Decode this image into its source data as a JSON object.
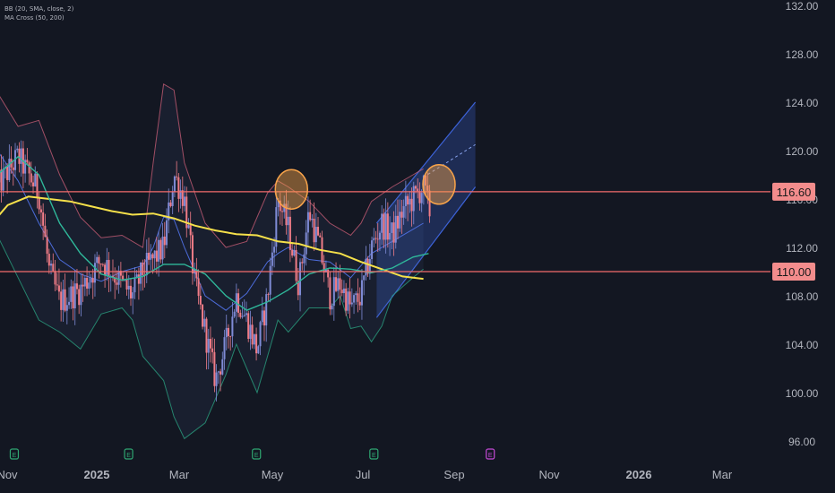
{
  "indicators": {
    "bb_label": "BB (20, SMA, close, 2)",
    "ma_label": "MA Cross (50, 200)"
  },
  "colors": {
    "background": "#131722",
    "axis_text": "#b2b5be",
    "candle_up": "#7f8bd6",
    "candle_down": "#f07c87",
    "bb_band": "#d0607a",
    "bb_basis": "#4c6bd8",
    "ma50": "#2fb89a",
    "ma200": "#f5e04a",
    "level_line": "#f36c6c",
    "price_label_bg": "#f38c8c",
    "price_label_text": "#1b1b1b",
    "channel": "#3d63d9",
    "highlight_circle": "#f7a34a",
    "event_green": "#2fa772",
    "event_purple": "#c44ad6"
  },
  "chart_data": {
    "type": "candlestick",
    "x_ticks": [
      "Nov",
      "2025",
      "Mar",
      "May",
      "Jul",
      "Sep",
      "Nov",
      "2026",
      "Mar"
    ],
    "y_ticks": [
      "132.00",
      "128.00",
      "124.00",
      "120.00",
      "116.00",
      "112.00",
      "108.00",
      "104.00",
      "100.00",
      "96.00"
    ],
    "ylim": [
      94,
      132
    ],
    "price_labels": [
      {
        "value": 116.6,
        "text": "116.60"
      },
      {
        "value": 110.0,
        "text": "110.00"
      }
    ],
    "series_path": [
      [
        0,
        117
      ],
      [
        2,
        119.5
      ],
      [
        4,
        116.5
      ],
      [
        5,
        110
      ],
      [
        6,
        107.5
      ],
      [
        8,
        108.5
      ],
      [
        10,
        111
      ],
      [
        12,
        109
      ],
      [
        13,
        108
      ],
      [
        14,
        110
      ],
      [
        16,
        112
      ],
      [
        17,
        118
      ],
      [
        18,
        116
      ],
      [
        19,
        109
      ],
      [
        20,
        105
      ],
      [
        21,
        101
      ],
      [
        22,
        104
      ],
      [
        23,
        108
      ],
      [
        24,
        106
      ],
      [
        25,
        103.5
      ],
      [
        26,
        108
      ],
      [
        27,
        116
      ],
      [
        28,
        113.5
      ],
      [
        29,
        109
      ],
      [
        30,
        115
      ],
      [
        31,
        112
      ],
      [
        32,
        108
      ],
      [
        33,
        109
      ],
      [
        34,
        107
      ],
      [
        35,
        108
      ],
      [
        36,
        112
      ],
      [
        37,
        114
      ],
      [
        38,
        113
      ],
      [
        39,
        115
      ],
      [
        40,
        116
      ],
      [
        41,
        117
      ],
      [
        41.6,
        115
      ]
    ],
    "bb_upper": [
      [
        0,
        124.8
      ],
      [
        2,
        122
      ],
      [
        4,
        122.5
      ],
      [
        6,
        118
      ],
      [
        8,
        114.5
      ],
      [
        10,
        112.8
      ],
      [
        12,
        113
      ],
      [
        14,
        112
      ],
      [
        15,
        119
      ],
      [
        16,
        125.5
      ],
      [
        17,
        125
      ],
      [
        18,
        119
      ],
      [
        20,
        114
      ],
      [
        22,
        112
      ],
      [
        24,
        112.5
      ],
      [
        26,
        116.5
      ],
      [
        27,
        117.5
      ],
      [
        28,
        117
      ],
      [
        30,
        115.8
      ],
      [
        32,
        114
      ],
      [
        34,
        113
      ],
      [
        35,
        114
      ],
      [
        36,
        115.8
      ],
      [
        38,
        117
      ],
      [
        40,
        118
      ],
      [
        41,
        118.5
      ]
    ],
    "bb_lower": [
      [
        0,
        113
      ],
      [
        2,
        109.5
      ],
      [
        4,
        106
      ],
      [
        6,
        105
      ],
      [
        8,
        103.6
      ],
      [
        10,
        106.5
      ],
      [
        12,
        107
      ],
      [
        13,
        106
      ],
      [
        14,
        103
      ],
      [
        16,
        101
      ],
      [
        17,
        98
      ],
      [
        18,
        96.2
      ],
      [
        20,
        97.5
      ],
      [
        22,
        101.5
      ],
      [
        23,
        104
      ],
      [
        24,
        102
      ],
      [
        25,
        100
      ],
      [
        26,
        103
      ],
      [
        27,
        106
      ],
      [
        28,
        105
      ],
      [
        30,
        107
      ],
      [
        32,
        107
      ],
      [
        33,
        108
      ],
      [
        34,
        105.3
      ],
      [
        35,
        105.5
      ],
      [
        36,
        104.2
      ],
      [
        37,
        105.5
      ],
      [
        38,
        108
      ],
      [
        40,
        109.5
      ],
      [
        41,
        110.2
      ]
    ],
    "bb_basis": [
      [
        0,
        120
      ],
      [
        2,
        117.5
      ],
      [
        4,
        114
      ],
      [
        6,
        111
      ],
      [
        8,
        109.8
      ],
      [
        10,
        109.2
      ],
      [
        12,
        110
      ],
      [
        14,
        110.5
      ],
      [
        15,
        112
      ],
      [
        16,
        114.5
      ],
      [
        17,
        114.3
      ],
      [
        18,
        112
      ],
      [
        19,
        110
      ],
      [
        20,
        108
      ],
      [
        22,
        106.8
      ],
      [
        24,
        108.2
      ],
      [
        26,
        110.8
      ],
      [
        27,
        111.5
      ],
      [
        28,
        112
      ],
      [
        30,
        111
      ],
      [
        32,
        110.8
      ],
      [
        34,
        109.5
      ],
      [
        35,
        110.5
      ],
      [
        36,
        111.5
      ],
      [
        38,
        112.5
      ],
      [
        40,
        113.5
      ],
      [
        41,
        114
      ]
    ],
    "ma50": [
      [
        0,
        118
      ],
      [
        2,
        119.5
      ],
      [
        4,
        118
      ],
      [
        6,
        114
      ],
      [
        8,
        111.5
      ],
      [
        10,
        109.8
      ],
      [
        12,
        109.3
      ],
      [
        14,
        109.6
      ],
      [
        16,
        110.6
      ],
      [
        18,
        110.6
      ],
      [
        20,
        109.8
      ],
      [
        22,
        108
      ],
      [
        24,
        106.8
      ],
      [
        26,
        107.5
      ],
      [
        28,
        108.5
      ],
      [
        30,
        109.8
      ],
      [
        32,
        110.3
      ],
      [
        34,
        110.2
      ],
      [
        36,
        109.9
      ],
      [
        38,
        110.3
      ],
      [
        40,
        111.2
      ],
      [
        41.5,
        111.5
      ]
    ],
    "ma200": [
      [
        0,
        114.5
      ],
      [
        1,
        115.5
      ],
      [
        3,
        116.2
      ],
      [
        5,
        116
      ],
      [
        7,
        115.8
      ],
      [
        9,
        115.4
      ],
      [
        11,
        115
      ],
      [
        13,
        114.7
      ],
      [
        15,
        114.8
      ],
      [
        17,
        114.4
      ],
      [
        19,
        113.8
      ],
      [
        21,
        113.4
      ],
      [
        23,
        113.1
      ],
      [
        25,
        113
      ],
      [
        27,
        112.5
      ],
      [
        29,
        112.3
      ],
      [
        31,
        111.8
      ],
      [
        33,
        111.5
      ],
      [
        35,
        110.8
      ],
      [
        37,
        110.2
      ],
      [
        39,
        109.6
      ],
      [
        41,
        109.4
      ]
    ],
    "channel": {
      "lower": [
        [
          0,
          106.2
        ],
        [
          46,
          117
        ]
      ],
      "upper": [
        [
          0,
          114
        ],
        [
          46,
          124
        ]
      ],
      "mid_dashed": [
        [
          41,
          117.8
        ],
        [
          46,
          120.5
        ]
      ],
      "x_start": 36.5
    },
    "highlights": [
      {
        "x": 28.3,
        "y": 116.8
      },
      {
        "x": 42.5,
        "y": 117.2
      }
    ],
    "events": [
      {
        "x": 0.6,
        "label": "E",
        "color": "green"
      },
      {
        "x": 11.6,
        "label": "E",
        "color": "green"
      },
      {
        "x": 23.9,
        "label": "E",
        "color": "green"
      },
      {
        "x": 35.2,
        "label": "E",
        "color": "green"
      },
      {
        "x": 46.4,
        "label": "E",
        "color": "purple"
      }
    ]
  }
}
